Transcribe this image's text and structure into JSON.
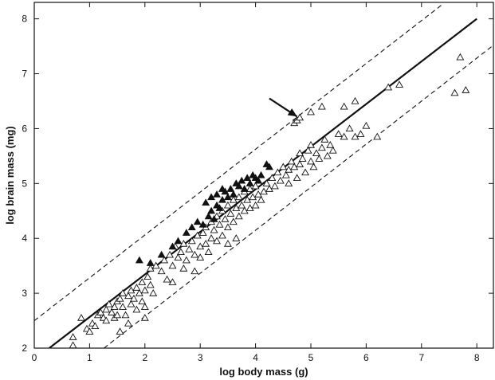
{
  "chart_data": {
    "type": "scatter",
    "xlabel": "log body mass (g)",
    "ylabel": "log brain mass (mg)",
    "xlim": [
      0,
      8.3
    ],
    "ylim": [
      2,
      8.3
    ],
    "x_ticks": [
      0,
      1,
      2,
      3,
      4,
      5,
      6,
      7,
      8
    ],
    "y_ticks": [
      2,
      3,
      4,
      5,
      6,
      7,
      8
    ],
    "x_tick_labels": [
      "0",
      "1",
      "2",
      "3",
      "4",
      "5",
      "6",
      "7",
      "8"
    ],
    "y_tick_labels": [
      "2",
      "3",
      "4",
      "5",
      "6",
      "7",
      "8"
    ],
    "grid": false,
    "regression_line": {
      "x": [
        0.27,
        8.0
      ],
      "y": [
        2.0,
        8.0
      ]
    },
    "upper_bound_line": {
      "x": [
        0.0,
        7.4
      ],
      "y": [
        2.5,
        8.28
      ]
    },
    "lower_bound_line": {
      "x": [
        1.26,
        8.3
      ],
      "y": [
        2.0,
        7.52
      ]
    },
    "annotation_arrow": {
      "from": [
        4.25,
        6.55
      ],
      "to": [
        4.75,
        6.22
      ]
    },
    "series": [
      {
        "marker": "open-triangle",
        "points": [
          [
            0.7,
            2.2
          ],
          [
            0.7,
            2.05
          ],
          [
            0.85,
            2.55
          ],
          [
            0.95,
            2.35
          ],
          [
            1.0,
            2.3
          ],
          [
            1.05,
            2.45
          ],
          [
            1.1,
            2.4
          ],
          [
            1.15,
            2.6
          ],
          [
            1.2,
            2.65
          ],
          [
            1.25,
            2.55
          ],
          [
            1.3,
            2.7
          ],
          [
            1.3,
            2.5
          ],
          [
            1.35,
            2.8
          ],
          [
            1.4,
            2.65
          ],
          [
            1.45,
            2.75
          ],
          [
            1.45,
            2.55
          ],
          [
            1.5,
            2.85
          ],
          [
            1.5,
            2.6
          ],
          [
            1.55,
            2.3
          ],
          [
            1.55,
            2.9
          ],
          [
            1.6,
            2.75
          ],
          [
            1.6,
            3.0
          ],
          [
            1.65,
            2.6
          ],
          [
            1.7,
            2.95
          ],
          [
            1.7,
            2.45
          ],
          [
            1.75,
            3.05
          ],
          [
            1.75,
            2.8
          ],
          [
            1.8,
            2.9
          ],
          [
            1.85,
            3.1
          ],
          [
            1.85,
            2.7
          ],
          [
            1.9,
            3.0
          ],
          [
            1.95,
            2.85
          ],
          [
            1.95,
            3.2
          ],
          [
            2.0,
            2.75
          ],
          [
            2.0,
            3.05
          ],
          [
            2.0,
            2.55
          ],
          [
            2.05,
            3.3
          ],
          [
            2.1,
            3.15
          ],
          [
            2.1,
            3.45
          ],
          [
            2.15,
            3.0
          ],
          [
            2.2,
            3.5
          ],
          [
            2.3,
            3.4
          ],
          [
            2.35,
            3.6
          ],
          [
            2.4,
            3.25
          ],
          [
            2.45,
            3.7
          ],
          [
            2.5,
            3.5
          ],
          [
            2.5,
            3.2
          ],
          [
            2.55,
            3.85
          ],
          [
            2.6,
            3.65
          ],
          [
            2.65,
            3.75
          ],
          [
            2.7,
            3.45
          ],
          [
            2.7,
            3.9
          ],
          [
            2.75,
            3.6
          ],
          [
            2.8,
            3.8
          ],
          [
            2.85,
            3.95
          ],
          [
            2.9,
            3.7
          ],
          [
            2.9,
            3.4
          ],
          [
            2.95,
            4.05
          ],
          [
            3.0,
            3.85
          ],
          [
            3.0,
            3.65
          ],
          [
            3.05,
            4.1
          ],
          [
            3.1,
            3.9
          ],
          [
            3.1,
            4.2
          ],
          [
            3.15,
            3.75
          ],
          [
            3.2,
            4.3
          ],
          [
            3.2,
            4.0
          ],
          [
            3.25,
            4.15
          ],
          [
            3.3,
            3.95
          ],
          [
            3.3,
            4.4
          ],
          [
            3.35,
            4.25
          ],
          [
            3.4,
            4.05
          ],
          [
            3.4,
            4.5
          ],
          [
            3.45,
            4.35
          ],
          [
            3.5,
            4.2
          ],
          [
            3.5,
            4.6
          ],
          [
            3.5,
            3.9
          ],
          [
            3.55,
            4.45
          ],
          [
            3.6,
            4.3
          ],
          [
            3.6,
            4.7
          ],
          [
            3.65,
            4.55
          ],
          [
            3.65,
            4.0
          ],
          [
            3.7,
            4.4
          ],
          [
            3.7,
            4.75
          ],
          [
            3.75,
            4.6
          ],
          [
            3.8,
            4.5
          ],
          [
            3.8,
            4.85
          ],
          [
            3.85,
            4.7
          ],
          [
            3.9,
            4.55
          ],
          [
            3.9,
            4.9
          ],
          [
            3.95,
            4.75
          ],
          [
            4.0,
            4.6
          ],
          [
            4.0,
            4.95
          ],
          [
            4.05,
            4.8
          ],
          [
            4.1,
            4.7
          ],
          [
            4.15,
            4.85
          ],
          [
            4.2,
            5.0
          ],
          [
            4.25,
            4.9
          ],
          [
            4.3,
            5.1
          ],
          [
            4.35,
            4.95
          ],
          [
            4.4,
            5.2
          ],
          [
            4.45,
            5.05
          ],
          [
            4.5,
            5.3
          ],
          [
            4.55,
            5.15
          ],
          [
            4.6,
            5.25
          ],
          [
            4.6,
            5.0
          ],
          [
            4.65,
            5.4
          ],
          [
            4.7,
            5.3
          ],
          [
            4.75,
            5.1
          ],
          [
            4.8,
            5.35
          ],
          [
            4.8,
            5.55
          ],
          [
            4.85,
            5.45
          ],
          [
            4.9,
            5.2
          ],
          [
            4.95,
            5.6
          ],
          [
            5.0,
            5.4
          ],
          [
            5.0,
            5.7
          ],
          [
            5.05,
            5.3
          ],
          [
            5.1,
            5.55
          ],
          [
            5.15,
            5.45
          ],
          [
            5.2,
            5.65
          ],
          [
            5.25,
            5.8
          ],
          [
            5.3,
            5.5
          ],
          [
            5.35,
            5.7
          ],
          [
            5.4,
            5.6
          ],
          [
            5.5,
            5.9
          ],
          [
            5.6,
            5.85
          ],
          [
            5.7,
            6.0
          ],
          [
            5.8,
            5.85
          ],
          [
            5.9,
            5.9
          ],
          [
            6.0,
            6.05
          ],
          [
            6.2,
            5.85
          ],
          [
            6.4,
            6.75
          ],
          [
            6.6,
            6.8
          ],
          [
            7.6,
            6.65
          ],
          [
            7.7,
            7.3
          ],
          [
            7.8,
            6.7
          ],
          [
            4.7,
            6.1
          ],
          [
            4.75,
            6.15
          ],
          [
            4.8,
            6.2
          ],
          [
            5.0,
            6.3
          ],
          [
            5.2,
            6.4
          ],
          [
            5.6,
            6.4
          ],
          [
            5.8,
            6.5
          ]
        ]
      },
      {
        "marker": "filled-triangle",
        "points": [
          [
            1.9,
            3.6
          ],
          [
            2.1,
            3.55
          ],
          [
            2.3,
            3.7
          ],
          [
            2.5,
            3.85
          ],
          [
            2.6,
            3.95
          ],
          [
            2.75,
            4.1
          ],
          [
            2.85,
            4.2
          ],
          [
            2.95,
            4.3
          ],
          [
            3.05,
            4.25
          ],
          [
            3.15,
            4.4
          ],
          [
            3.2,
            4.5
          ],
          [
            3.25,
            4.35
          ],
          [
            3.3,
            4.6
          ],
          [
            3.35,
            4.55
          ],
          [
            3.4,
            4.7
          ],
          [
            3.45,
            4.85
          ],
          [
            3.5,
            4.75
          ],
          [
            3.55,
            4.9
          ],
          [
            3.6,
            4.8
          ],
          [
            3.65,
            5.0
          ],
          [
            3.7,
            4.95
          ],
          [
            3.75,
            5.05
          ],
          [
            3.8,
            4.9
          ],
          [
            3.85,
            5.1
          ],
          [
            3.9,
            5.0
          ],
          [
            3.95,
            5.15
          ],
          [
            4.0,
            5.1
          ],
          [
            4.05,
            5.05
          ],
          [
            4.1,
            5.15
          ],
          [
            4.2,
            5.35
          ],
          [
            4.25,
            5.3
          ],
          [
            3.1,
            4.65
          ],
          [
            3.2,
            4.75
          ],
          [
            3.3,
            4.8
          ],
          [
            3.4,
            4.9
          ]
        ]
      }
    ]
  }
}
